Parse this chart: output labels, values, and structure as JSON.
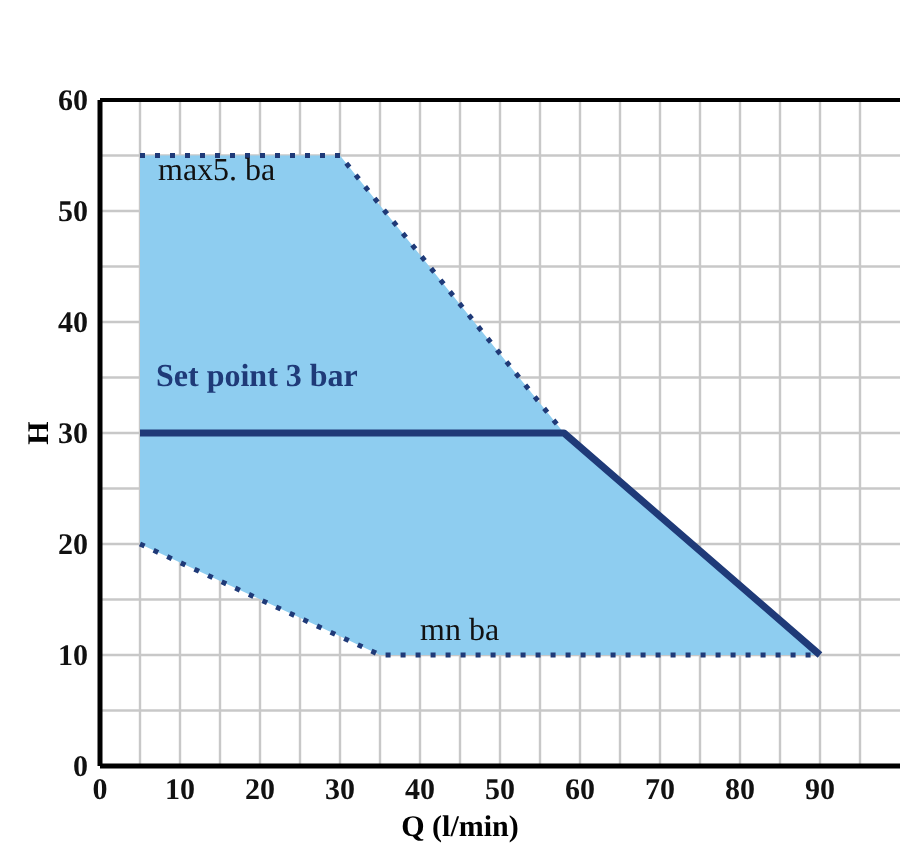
{
  "chart_data": {
    "type": "line",
    "xlabel": "Q (l/min)",
    "ylabel": "H",
    "xlim": [
      0,
      100
    ],
    "ylim": [
      0,
      60
    ],
    "xticks": [
      0,
      {
        "value": 5,
        "label": null
      },
      10,
      {
        "value": 15,
        "label": null
      },
      20,
      {
        "value": 25,
        "label": null
      },
      30,
      {
        "value": 35,
        "label": null
      },
      40,
      {
        "value": 45,
        "label": null
      },
      50,
      {
        "value": 55,
        "label": null
      },
      60,
      {
        "value": 65,
        "label": null
      },
      70,
      {
        "value": 75,
        "label": null
      },
      80,
      {
        "value": 85,
        "label": null
      },
      90,
      {
        "value": 95,
        "label": null
      }
    ],
    "yticks": [
      0,
      {
        "value": 5,
        "label": null
      },
      10,
      {
        "value": 15,
        "label": null
      },
      20,
      {
        "value": 25,
        "label": null
      },
      30,
      {
        "value": 35,
        "label": null
      },
      40,
      {
        "value": 45,
        "label": null
      },
      50,
      {
        "value": 55,
        "label": null
      },
      60
    ],
    "grid": true,
    "series": [
      {
        "color": "#1f3a78",
        "x": [
          5,
          30,
          58
        ],
        "values": [
          55,
          55,
          30
        ],
        "line_style": "dotted"
      },
      {
        "color": "#1f3a78",
        "x": [
          5,
          35,
          90
        ],
        "values": [
          20,
          10,
          10
        ],
        "line_style": "dotted"
      },
      {
        "color": "#1f3a78",
        "x": [
          5,
          30,
          35,
          58,
          90
        ],
        "values": [
          30,
          30,
          30,
          30,
          10
        ],
        "line_style": "solid",
        "lower": [
          20,
          11.7,
          10,
          10,
          10
        ],
        "upper": [
          55,
          55,
          50.5,
          30,
          10
        ]
      }
    ],
    "annotations": [
      "max5. ba",
      "Set point 3 bar",
      "mn  ba"
    ]
  }
}
